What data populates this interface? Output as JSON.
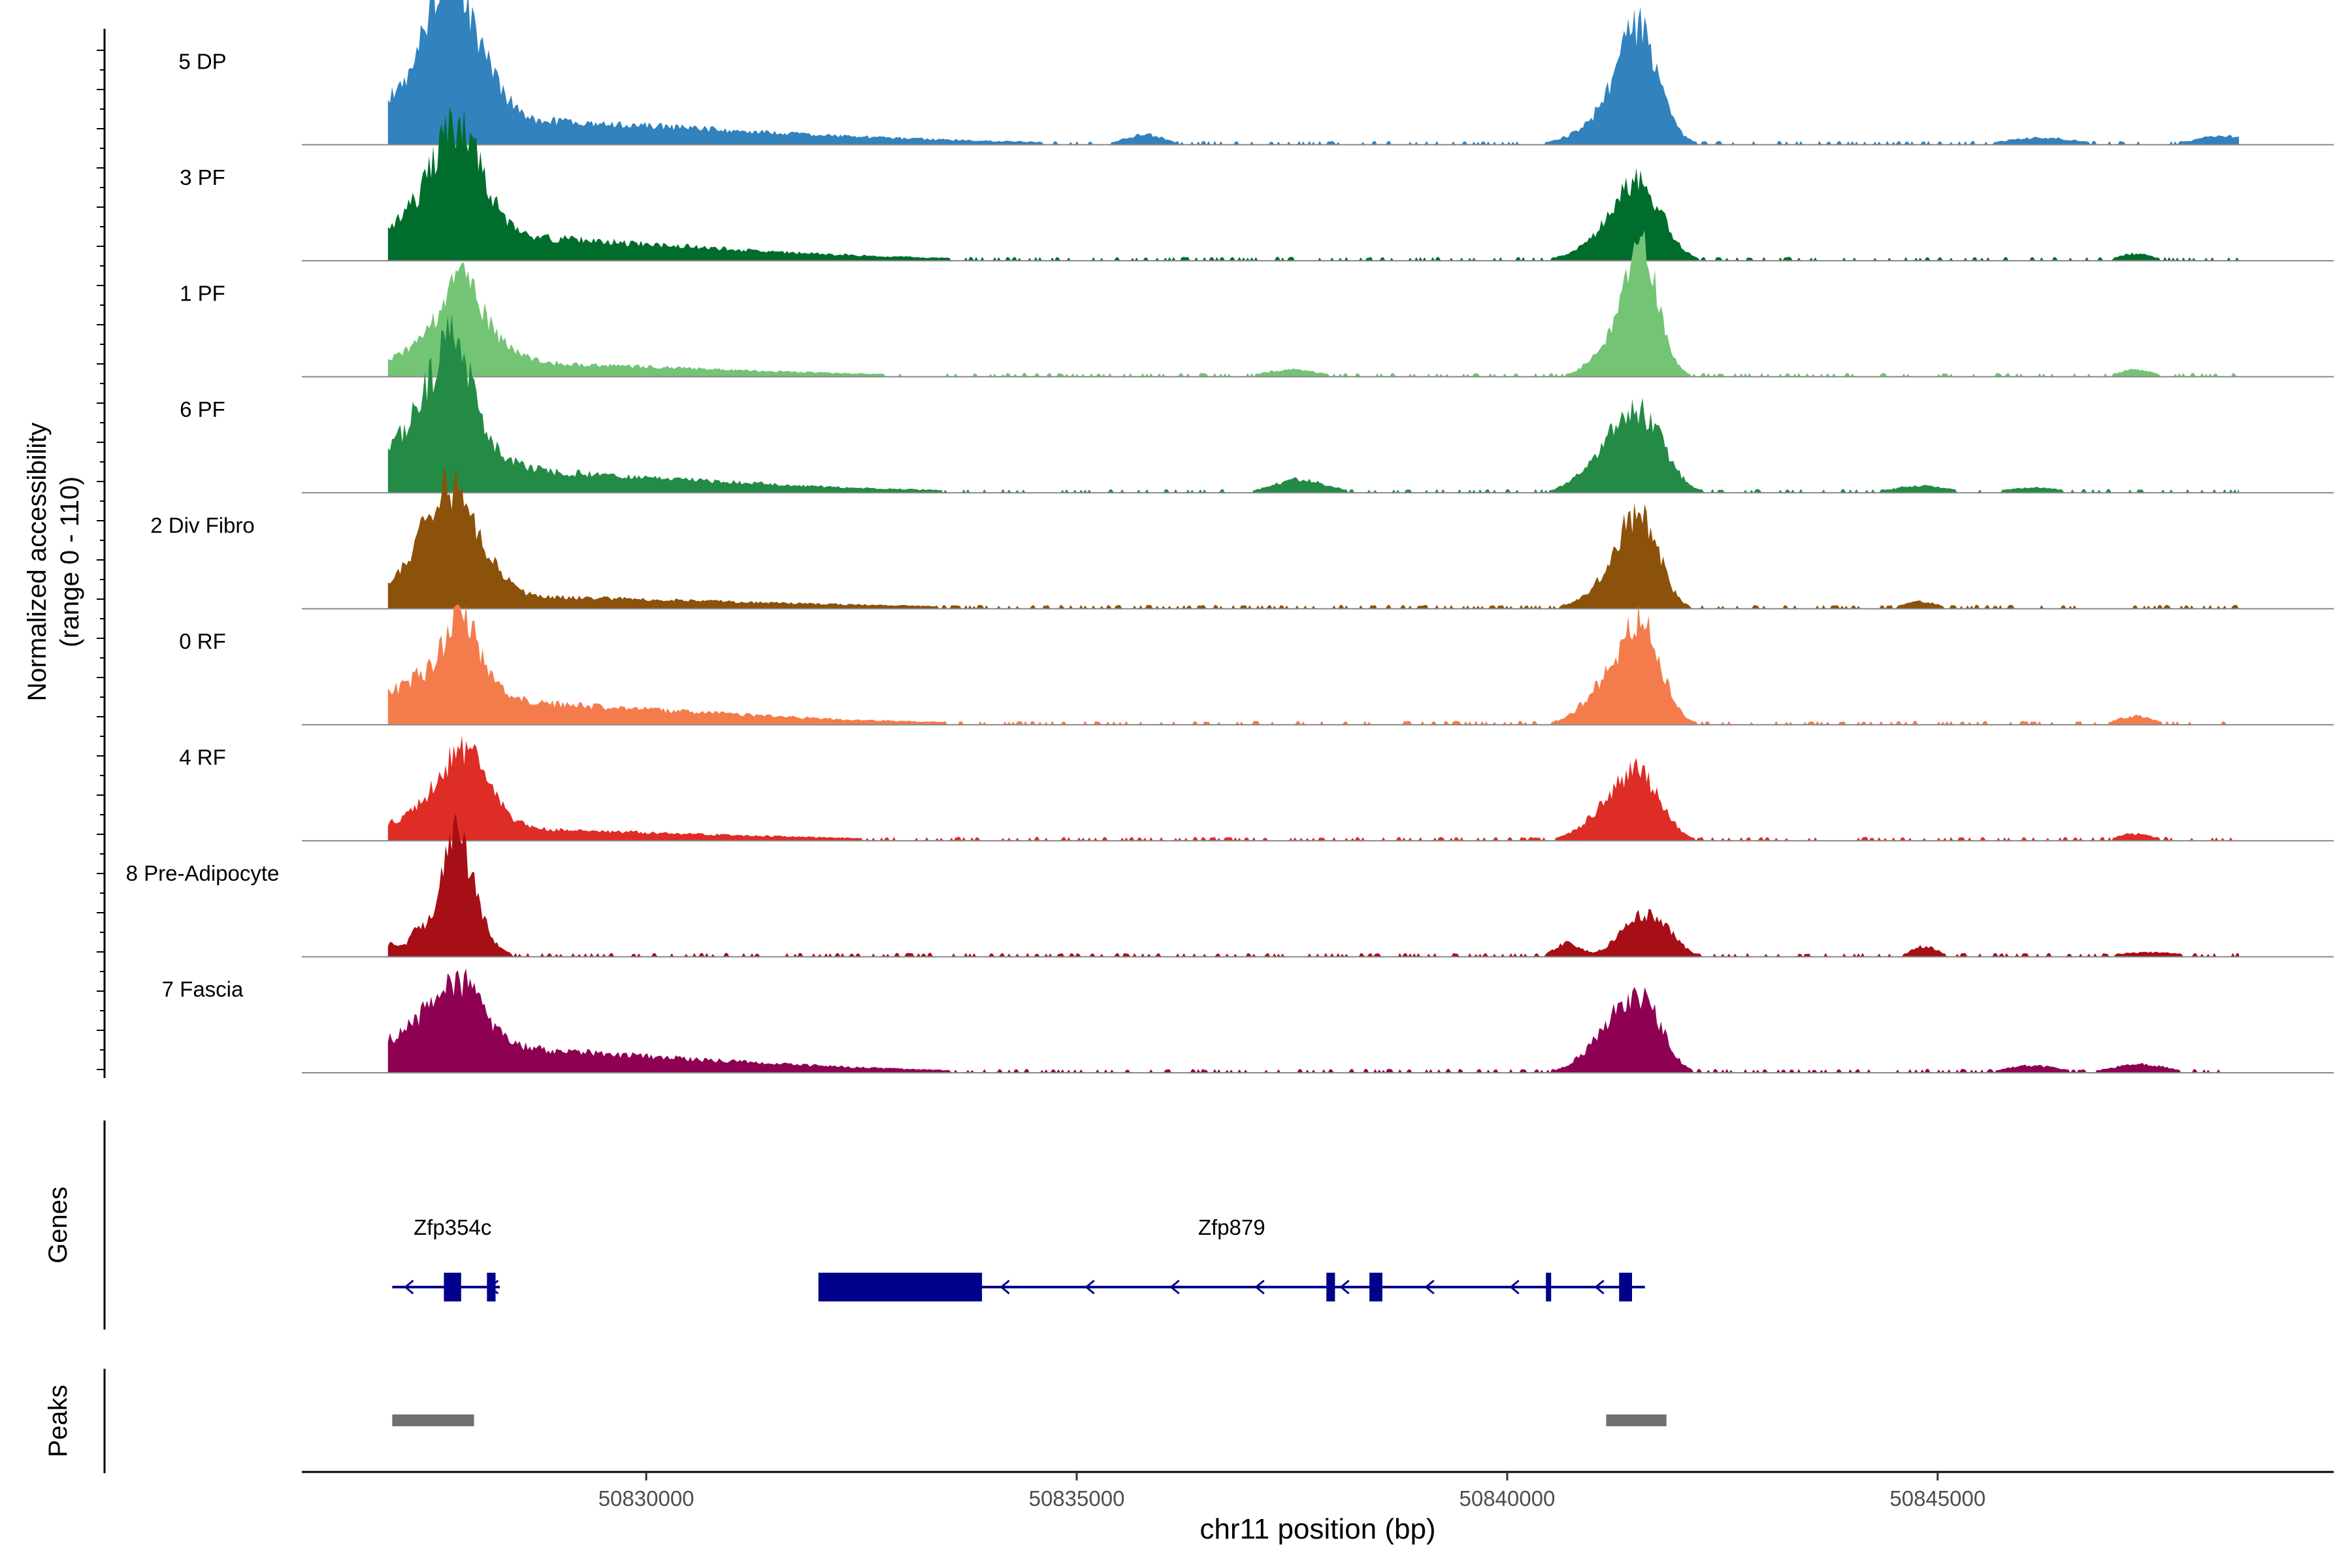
{
  "chart_data": {
    "type": "area",
    "title": "",
    "xlabel": "chr11 position (bp)",
    "ylabel": [
      "Normalized accessibility",
      "(range 0 - 110)"
    ],
    "ylim": [
      0,
      110
    ],
    "xlim": [
      50826000,
      50849600
    ],
    "x_ticks": [
      50830000,
      50835000,
      50840000,
      50845000
    ],
    "x_tick_labels": [
      "50830000",
      "50835000",
      "50840000",
      "50845000"
    ],
    "series": [
      {
        "name": "5 DP",
        "color": "#3182bd",
        "peaks": [
          [
            50827100,
            3500,
            30
          ],
          [
            50827250,
            500,
            28
          ],
          [
            50827600,
            200,
            56
          ],
          [
            50827750,
            200,
            70
          ],
          [
            50827900,
            300,
            55
          ],
          [
            50828200,
            200,
            12
          ],
          [
            50835800,
            200,
            10
          ],
          [
            50841050,
            350,
            12
          ],
          [
            50841450,
            300,
            60
          ],
          [
            50841550,
            200,
            70
          ],
          [
            50846200,
            400,
            8
          ],
          [
            50848300,
            300,
            10
          ]
        ]
      },
      {
        "name": "3 PF",
        "color": "#006d2c",
        "peaks": [
          [
            50827100,
            3000,
            30
          ],
          [
            50827350,
            250,
            25
          ],
          [
            50827700,
            200,
            40
          ],
          [
            50827850,
            250,
            70
          ],
          [
            50828050,
            250,
            25
          ],
          [
            50841050,
            300,
            15
          ],
          [
            50841450,
            250,
            58
          ],
          [
            50841650,
            250,
            35
          ],
          [
            50847300,
            200,
            8
          ]
        ]
      },
      {
        "name": "1 PF",
        "color": "#74c476",
        "peaks": [
          [
            50827100,
            3000,
            18
          ],
          [
            50827450,
            200,
            25
          ],
          [
            50827850,
            180,
            75
          ],
          [
            50828100,
            300,
            30
          ],
          [
            50837500,
            300,
            8
          ],
          [
            50841300,
            300,
            25
          ],
          [
            50841500,
            250,
            60
          ],
          [
            50841600,
            150,
            72
          ],
          [
            50847300,
            200,
            8
          ]
        ]
      },
      {
        "name": "6 PF",
        "color": "#238b45",
        "peaks": [
          [
            50827100,
            3000,
            28
          ],
          [
            50827300,
            250,
            35
          ],
          [
            50827650,
            250,
            60
          ],
          [
            50827800,
            200,
            75
          ],
          [
            50828100,
            300,
            20
          ],
          [
            50837600,
            300,
            15
          ],
          [
            50841100,
            300,
            20
          ],
          [
            50841450,
            300,
            60
          ],
          [
            50841650,
            250,
            30
          ],
          [
            50844800,
            300,
            8
          ],
          [
            50846100,
            300,
            6
          ]
        ]
      },
      {
        "name": "2 Div Fibro",
        "color": "#8c510a",
        "peaks": [
          [
            50827100,
            3500,
            15
          ],
          [
            50827500,
            300,
            40
          ],
          [
            50827700,
            250,
            65
          ],
          [
            50827950,
            300,
            35
          ],
          [
            50828200,
            200,
            8
          ],
          [
            50841150,
            300,
            15
          ],
          [
            50841450,
            250,
            58
          ],
          [
            50841600,
            200,
            48
          ],
          [
            50844800,
            200,
            8
          ]
        ]
      },
      {
        "name": "0 RF",
        "color": "#f47c4c",
        "peaks": [
          [
            50827100,
            3000,
            28
          ],
          [
            50827400,
            250,
            25
          ],
          [
            50827850,
            180,
            85
          ],
          [
            50828050,
            300,
            15
          ],
          [
            50841150,
            300,
            25
          ],
          [
            50841450,
            300,
            50
          ],
          [
            50841600,
            200,
            58
          ],
          [
            50847300,
            200,
            10
          ]
        ]
      },
      {
        "name": "4 RF",
        "color": "#de2d26",
        "peaks": [
          [
            50827100,
            3000,
            15
          ],
          [
            50827500,
            300,
            18
          ],
          [
            50827850,
            250,
            62
          ],
          [
            50828100,
            250,
            25
          ],
          [
            50841200,
            300,
            30
          ],
          [
            50841550,
            250,
            62
          ],
          [
            50847300,
            200,
            8
          ]
        ]
      },
      {
        "name": "8 Pre-Adipocyte",
        "color": "#a50f15",
        "peaks": [
          [
            50827050,
            100,
            15
          ],
          [
            50827350,
            100,
            28
          ],
          [
            50827700,
            150,
            55
          ],
          [
            50827850,
            180,
            90
          ],
          [
            50828100,
            200,
            12
          ],
          [
            50840700,
            150,
            15
          ],
          [
            50841550,
            250,
            40
          ],
          [
            50841800,
            200,
            15
          ],
          [
            50844850,
            150,
            12
          ],
          [
            50847450,
            400,
            5
          ]
        ]
      },
      {
        "name": "7 Fascia",
        "color": "#8e0152",
        "peaks": [
          [
            50827100,
            3000,
            30
          ],
          [
            50827450,
            300,
            20
          ],
          [
            50827800,
            250,
            60
          ],
          [
            50828100,
            300,
            10
          ],
          [
            50841200,
            300,
            35
          ],
          [
            50841500,
            250,
            55
          ],
          [
            50841700,
            200,
            20
          ],
          [
            50846100,
            300,
            8
          ],
          [
            50847350,
            300,
            10
          ]
        ]
      }
    ],
    "genes_panel": {
      "label": "Genes",
      "genes": [
        {
          "name": "Zfp354c",
          "strand": "-",
          "start": 50827050,
          "end": 50828300,
          "exons": [
            [
              50827650,
              50827850
            ],
            [
              50828150,
              50828250
            ]
          ]
        },
        {
          "name": "Zfp879",
          "strand": "-",
          "start": 50832000,
          "end": 50841600,
          "exons": [
            [
              50832000,
              50833900
            ],
            [
              50837900,
              50838000
            ],
            [
              50838400,
              50838550
            ],
            [
              50840450,
              50840500
            ],
            [
              50841300,
              50841450
            ]
          ]
        }
      ]
    },
    "peaks_panel": {
      "label": "Peaks",
      "regions": [
        [
          50827050,
          50828000
        ],
        [
          50841150,
          50841850
        ]
      ]
    }
  }
}
